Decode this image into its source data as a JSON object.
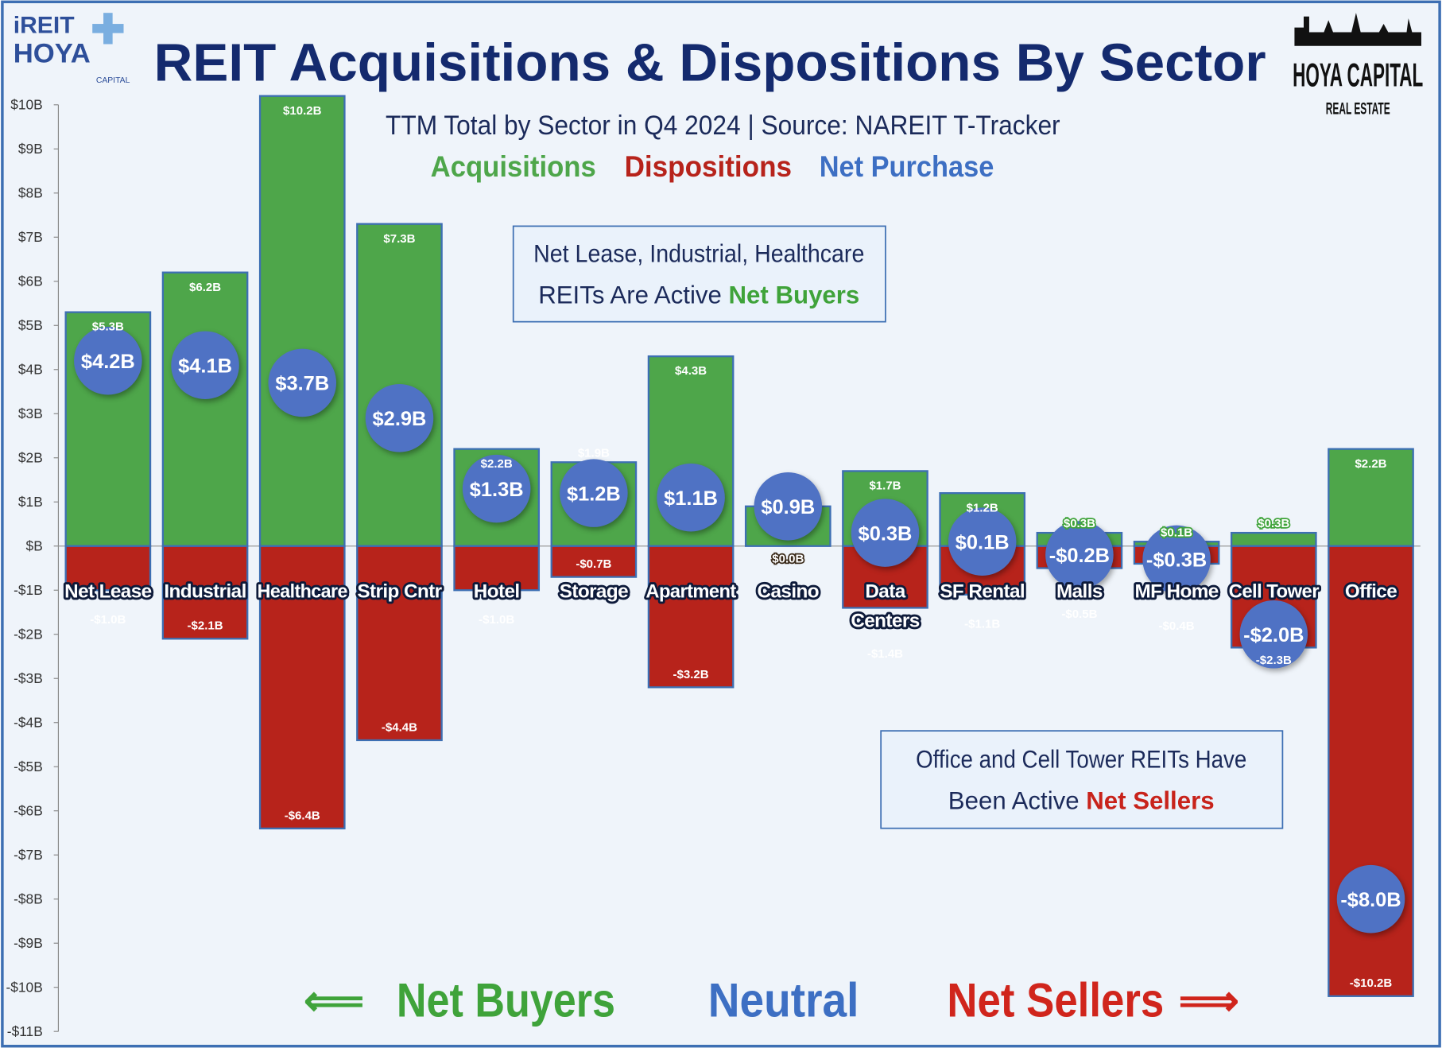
{
  "header": {
    "logo_left": "iREIT HOYA CAPITAL",
    "logo_right": "HOYA CAPITAL REAL ESTATE"
  },
  "chart_data": {
    "type": "bar",
    "title": "REIT Acquisitions & Dispositions By Sector",
    "subtitle": "TTM Total by Sector in Q4 2024 |  Source: NAREIT T-Tracker",
    "xlabel": "",
    "ylabel": "",
    "ylim": [
      -11,
      10
    ],
    "y_tick_labels": [
      "$10B",
      "$9B",
      "$8B",
      "$7B",
      "$6B",
      "$5B",
      "$4B",
      "$3B",
      "$2B",
      "$1B",
      "$B",
      "-$1B",
      "-$2B",
      "-$3B",
      "-$4B",
      "-$5B",
      "-$6B",
      "-$7B",
      "-$8B",
      "-$9B",
      "-$10B",
      "-$11B"
    ],
    "grid": false,
    "legend_position": "top-center",
    "categories": [
      "Net Lease",
      "Industrial",
      "Healthcare",
      "Strip Cntr",
      "Hotel",
      "Storage",
      "Apartment",
      "Casino",
      "Data Centers",
      "SF Rental",
      "Malls",
      "MF Home",
      "Cell Tower",
      "Office"
    ],
    "series": [
      {
        "name": "Acquisitions",
        "color": "#4ea64a",
        "values": [
          5.3,
          6.2,
          10.2,
          7.3,
          2.2,
          1.9,
          4.3,
          0.9,
          1.7,
          1.2,
          0.3,
          0.1,
          0.3,
          2.2
        ],
        "labels": [
          "$5.3B",
          "$6.2B",
          "$10.2B",
          "$7.3B",
          "$2.2B",
          "$1.9B",
          "$4.3B",
          "",
          "$1.7B",
          "$1.2B",
          "$0.3B",
          "$0.1B",
          "$0.3B",
          "$2.2B"
        ]
      },
      {
        "name": "Dispositions",
        "color": "#b7231b",
        "values": [
          -1.0,
          -2.1,
          -6.4,
          -4.4,
          -1.0,
          -0.7,
          -3.2,
          0.0,
          -1.4,
          -1.1,
          -0.5,
          -0.4,
          -2.3,
          -10.2
        ],
        "labels": [
          "-$1.0B",
          "-$2.1B",
          "-$6.4B",
          "-$4.4B",
          "-$1.0B",
          "-$0.7B",
          "-$3.2B",
          "$0.0B",
          "-$1.4B",
          "-$1.1B",
          "-$0.5B",
          "-$0.4B",
          "-$2.3B",
          "-$10.2B"
        ]
      },
      {
        "name": "Net Purchase",
        "color": "#4f72c4",
        "values": [
          4.2,
          4.1,
          3.7,
          2.9,
          1.3,
          1.2,
          1.1,
          0.9,
          0.3,
          0.1,
          -0.2,
          -0.3,
          -2.0,
          -8.0
        ],
        "labels": [
          "$4.2B",
          "$4.1B",
          "$3.7B",
          "$2.9B",
          "$1.3B",
          "$1.2B",
          "$1.1B",
          "$0.9B",
          "$0.3B",
          "$0.1B",
          "-$0.2B",
          "-$0.3B",
          "-$2.0B",
          "-$8.0B"
        ]
      }
    ],
    "annotations": {
      "buyers_box_line1": "Net Lease, Industrial, Healthcare",
      "buyers_box_line2": "REITs Are Active ",
      "buyers_box_emph": "Net Buyers",
      "sellers_box_line1": "Office and Cell Tower REITs Have",
      "sellers_box_line2": "Been Active ",
      "sellers_box_emph": "Net Sellers",
      "bottom_buyers": "Net Buyers",
      "bottom_neutral": "Neutral",
      "bottom_sellers": "Net Sellers"
    }
  }
}
